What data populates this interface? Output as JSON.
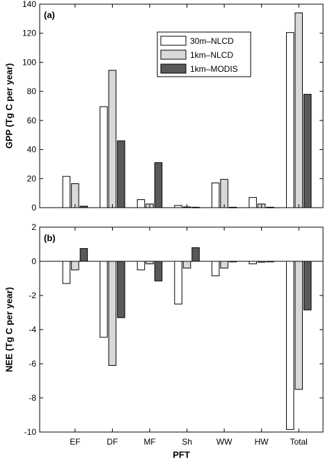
{
  "chart_data": [
    {
      "type": "bar",
      "panel_label": "(a)",
      "ylabel": "GPP (Tg C per year)",
      "xlabel": "",
      "ylim": [
        0,
        140
      ],
      "yticks": [
        0,
        20,
        40,
        60,
        80,
        100,
        120,
        140
      ],
      "categories": [
        "EF",
        "DF",
        "MF",
        "Sh",
        "WW",
        "HW",
        "Total"
      ],
      "series": [
        {
          "name": "30m–NLCD",
          "color": "#ffffff",
          "values": [
            21.5,
            69.5,
            5.5,
            1.5,
            17,
            7,
            120.5
          ]
        },
        {
          "name": "1km–NLCD",
          "color": "#d9d9d9",
          "values": [
            16.5,
            94.5,
            2.5,
            0.5,
            19.5,
            2.5,
            134
          ]
        },
        {
          "name": "1km–MODIS",
          "color": "#595959",
          "values": [
            1,
            46,
            31,
            0.3,
            0.3,
            0.3,
            78
          ]
        }
      ],
      "legend": "top-center",
      "grid": false
    },
    {
      "type": "bar",
      "panel_label": "(b)",
      "ylabel": "NEE (Tg C per year)",
      "xlabel": "PFT",
      "ylim": [
        -10,
        2
      ],
      "yticks": [
        -10,
        -8,
        -6,
        -4,
        -2,
        0,
        2
      ],
      "categories": [
        "EF",
        "DF",
        "MF",
        "Sh",
        "WW",
        "HW",
        "Total"
      ],
      "series": [
        {
          "name": "30m–NLCD",
          "color": "#ffffff",
          "values": [
            -1.3,
            -4.45,
            -0.5,
            -2.5,
            -0.85,
            -0.15,
            -9.85
          ]
        },
        {
          "name": "1km–NLCD",
          "color": "#d9d9d9",
          "values": [
            -0.5,
            -6.1,
            -0.15,
            -0.4,
            -0.4,
            -0.05,
            -7.5
          ]
        },
        {
          "name": "1km–MODIS",
          "color": "#595959",
          "values": [
            0.75,
            -3.3,
            -1.15,
            0.8,
            -0.03,
            -0.03,
            -2.85
          ]
        }
      ],
      "grid": false
    }
  ]
}
